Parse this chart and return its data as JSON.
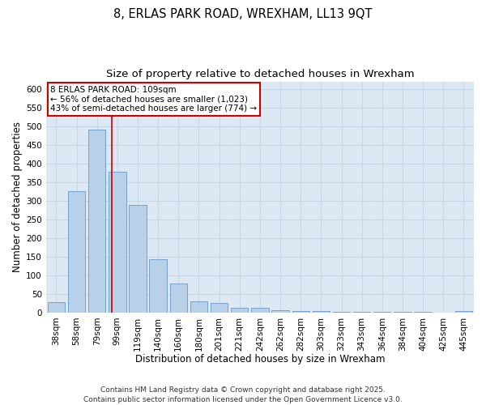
{
  "title_line1": "8, ERLAS PARK ROAD, WREXHAM, LL13 9QT",
  "title_line2": "Size of property relative to detached houses in Wrexham",
  "xlabel": "Distribution of detached houses by size in Wrexham",
  "ylabel": "Number of detached properties",
  "categories": [
    "38sqm",
    "58sqm",
    "79sqm",
    "99sqm",
    "119sqm",
    "140sqm",
    "160sqm",
    "180sqm",
    "201sqm",
    "221sqm",
    "242sqm",
    "262sqm",
    "282sqm",
    "303sqm",
    "323sqm",
    "343sqm",
    "364sqm",
    "384sqm",
    "404sqm",
    "425sqm",
    "445sqm"
  ],
  "values": [
    28,
    325,
    490,
    378,
    288,
    143,
    78,
    30,
    26,
    13,
    13,
    6,
    3,
    4,
    2,
    1,
    1,
    1,
    1,
    0,
    3
  ],
  "bar_color": "#b8d0e8",
  "bar_edge_color": "#6699cc",
  "grid_color": "#c8d8e8",
  "plot_bg_color": "#dce9f5",
  "fig_bg_color": "#ffffff",
  "vline_x_index": 2.72,
  "vline_color": "#cc0000",
  "annotation_text": "8 ERLAS PARK ROAD: 109sqm\n← 56% of detached houses are smaller (1,023)\n43% of semi-detached houses are larger (774) →",
  "annotation_box_color": "#ffffff",
  "annotation_box_edge": "#cc0000",
  "ylim": [
    0,
    620
  ],
  "yticks": [
    0,
    50,
    100,
    150,
    200,
    250,
    300,
    350,
    400,
    450,
    500,
    550,
    600
  ],
  "footer": "Contains HM Land Registry data © Crown copyright and database right 2025.\nContains public sector information licensed under the Open Government Licence v3.0.",
  "title_fontsize": 10.5,
  "subtitle_fontsize": 9.5,
  "axis_label_fontsize": 8.5,
  "tick_fontsize": 7.5,
  "annotation_fontsize": 7.5,
  "footer_fontsize": 6.5
}
